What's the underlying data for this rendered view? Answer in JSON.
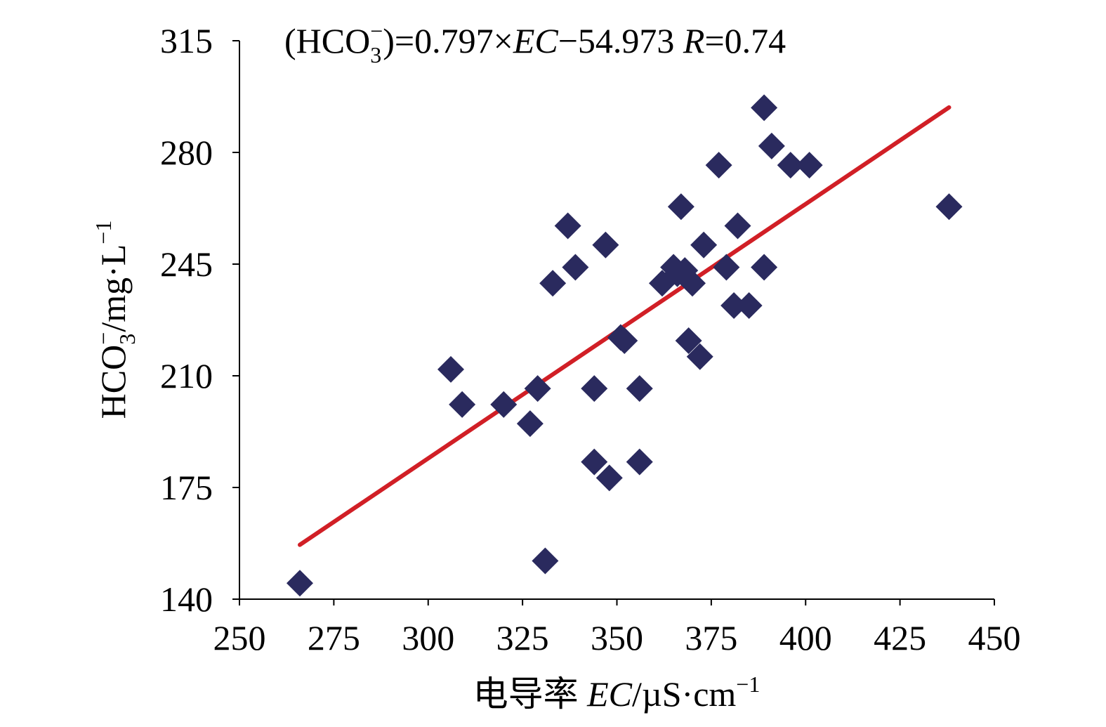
{
  "chart_data": {
    "type": "scatter",
    "title": "",
    "annotation": {
      "prefix": "(HCO",
      "sub": "3",
      "sup": "−",
      "suffix": ")=0.797×",
      "ec": "EC",
      "mid": "−54.973 ",
      "r": "R",
      "r_value": "=0.74"
    },
    "xlabel": {
      "prefix": "电导率 ",
      "italic": "EC",
      "unit": "/µS·cm",
      "sup": "−1"
    },
    "ylabel": {
      "prefix": "HCO",
      "sub": "3",
      "sup1": "−",
      "unit": "/mg·L",
      "sup2": "−1"
    },
    "xlim": [
      250,
      450
    ],
    "ylim": [
      140,
      315
    ],
    "x_ticks": [
      250,
      275,
      300,
      325,
      350,
      375,
      400,
      425,
      450
    ],
    "y_ticks": [
      140,
      175,
      210,
      245,
      280,
      315
    ],
    "grid": false,
    "legend": "none",
    "marker_color": "#2a2a5e",
    "trendline_color": "#d11f26",
    "trendline": {
      "slope": 0.797,
      "intercept": -54.973,
      "x_range": [
        266,
        438
      ]
    },
    "points": [
      {
        "x": 266,
        "y": 145
      },
      {
        "x": 306,
        "y": 212
      },
      {
        "x": 309,
        "y": 201
      },
      {
        "x": 320,
        "y": 201
      },
      {
        "x": 327,
        "y": 195
      },
      {
        "x": 329,
        "y": 206
      },
      {
        "x": 331,
        "y": 152
      },
      {
        "x": 333,
        "y": 239
      },
      {
        "x": 337,
        "y": 257
      },
      {
        "x": 339,
        "y": 244
      },
      {
        "x": 344,
        "y": 206
      },
      {
        "x": 344,
        "y": 183
      },
      {
        "x": 347,
        "y": 251
      },
      {
        "x": 348,
        "y": 178
      },
      {
        "x": 351,
        "y": 222
      },
      {
        "x": 352,
        "y": 221
      },
      {
        "x": 356,
        "y": 206
      },
      {
        "x": 356,
        "y": 183
      },
      {
        "x": 362,
        "y": 239
      },
      {
        "x": 365,
        "y": 244
      },
      {
        "x": 366,
        "y": 242
      },
      {
        "x": 367,
        "y": 263
      },
      {
        "x": 368,
        "y": 243
      },
      {
        "x": 369,
        "y": 221
      },
      {
        "x": 370,
        "y": 239
      },
      {
        "x": 372,
        "y": 216
      },
      {
        "x": 373,
        "y": 251
      },
      {
        "x": 377,
        "y": 276
      },
      {
        "x": 379,
        "y": 244
      },
      {
        "x": 381,
        "y": 232
      },
      {
        "x": 382,
        "y": 257
      },
      {
        "x": 385,
        "y": 232
      },
      {
        "x": 389,
        "y": 244
      },
      {
        "x": 389,
        "y": 294
      },
      {
        "x": 391,
        "y": 282
      },
      {
        "x": 396,
        "y": 276
      },
      {
        "x": 401,
        "y": 276
      },
      {
        "x": 438,
        "y": 263
      }
    ]
  }
}
